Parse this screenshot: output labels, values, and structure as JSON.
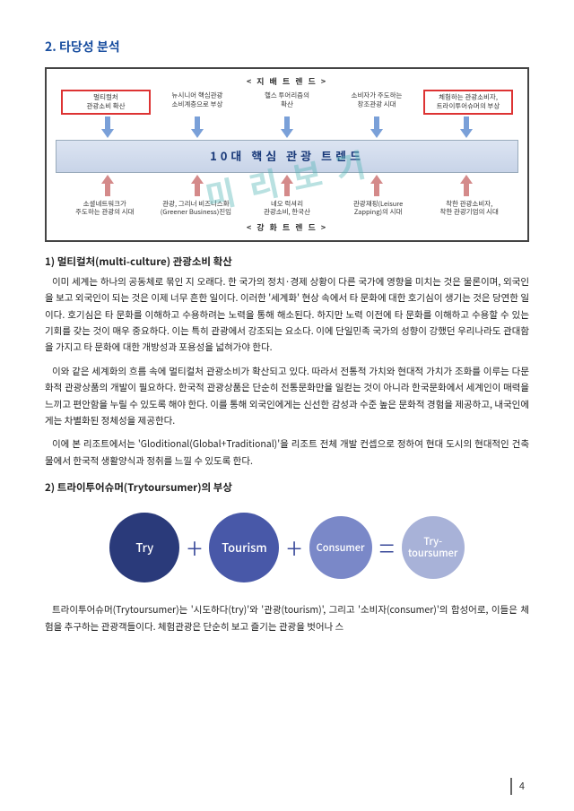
{
  "section": {
    "number": "2.",
    "title": "타당성 분석"
  },
  "diagram": {
    "top_label": "< 지 배   트 렌 드 >",
    "top_items": [
      {
        "line1": "멀티컬처",
        "line2": "관광소비 확산",
        "highlight": true
      },
      {
        "line1": "뉴시니어 핵심관광",
        "line2": "소비계층으로 부상",
        "highlight": false
      },
      {
        "line1": "헬스 투어리즘의",
        "line2": "확산",
        "highlight": false
      },
      {
        "line1": "소비자가 주도하는",
        "line2": "창조관광 시대",
        "highlight": false
      },
      {
        "line1": "체험하는 관광소비자,",
        "line2": "트라이투어슈머의 부상",
        "highlight": true
      }
    ],
    "center_bar": "10대 핵심 관광 트렌드",
    "bottom_items": [
      {
        "line1": "소셜네트워크가",
        "line2": "주도하는 관광의 시대"
      },
      {
        "line1": "관광, 그리너 비즈니스화",
        "line2": "(Greener Business)진입"
      },
      {
        "line1": "네오 럭셔리",
        "line2": "관광소비, 한국산"
      },
      {
        "line1": "관광재핑(Leisure",
        "line2": "Zapping)의 시대"
      },
      {
        "line1": "착한 관광소비자,",
        "line2": "착한 관광기업의 시대"
      }
    ],
    "bottom_label": "< 강 화   트 렌 드 >",
    "arrow_down_color": "#7aa0d8",
    "arrow_up_color": "#d48a8a"
  },
  "watermark": "미 리 보 기",
  "sub1": {
    "heading": "1) 멀티컬처(multi-culture) 관광소비 확산",
    "p1": "이미 세계는 하나의 공동체로 묶인 지 오래다. 한 국가의 정치·경제 상황이 다른 국가에 영향을 미치는 것은 물론이며, 외국인을 보고 외국인이 되는 것은 이제 너무 흔한 일이다. 이러한 '세계화' 현상 속에서 타 문화에 대한 호기심이 생기는 것은 당연한 일이다. 호기심은 타 문화를 이해하고 수용하려는 노력을 통해 해소된다. 하지만 노력 이전에 타 문화를 이해하고 수용할 수 있는 기회를 갖는 것이 매우 중요하다. 이는 특히 관광에서 강조되는 요소다. 이에 단일민족 국가의 성향이 강했던 우리나라도 관대함을 가지고 타 문화에 대한 개방성과 포용성을 넓혀가야 한다.",
    "p2": "이와 같은 세계화의 흐름 속에 멀티컬처 관광소비가 확산되고 있다. 따라서 전통적 가치와 현대적 가치가 조화를 이루는 다문화적 관광상품의 개발이 필요하다. 한국적 관광상품은 단순히 전통문화만을 일컫는 것이 아니라 한국문화에서 세계인이 매력을 느끼고 편안함을 누릴 수 있도록 해야 한다. 이를 통해 외국인에게는 신선한 감성과 수준 높은 문화적 경험을 제공하고, 내국인에게는 차별화된 정체성을 제공한다.",
    "p3": "이에 본 리조트에서는 'Gloditional(Global+Traditional)'을 리조트 전체 개발 컨셉으로 정하여 현대 도시의 현대적인 건축물에서 한국적 생활양식과 정취를 느낄 수 있도록 한다."
  },
  "sub2": {
    "heading": "2) 트라이투어슈머(Trytoursumer)의 부상",
    "circles": [
      {
        "label": "Try",
        "bg": "#2a3a7a",
        "size": 78
      },
      {
        "label": "Tourism",
        "bg": "#4858a8",
        "size": 78
      },
      {
        "label": "Consumer",
        "bg": "#7a88c8",
        "size": 70
      },
      {
        "label": "Try-\ntoursumer",
        "bg": "#a8b2d8",
        "size": 70
      }
    ],
    "ops": [
      "+",
      "+",
      "="
    ],
    "p1": "트라이투어슈머(Trytoursumer)는 '시도하다(try)'와 '관광(tourism)', 그리고 '소비자(consumer)'의 합성어로, 이들은 체험을 추구하는 관광객들이다. 체험관광은 단순히 보고 즐기는 관광을 벗어나 스"
  },
  "page_number": "4"
}
